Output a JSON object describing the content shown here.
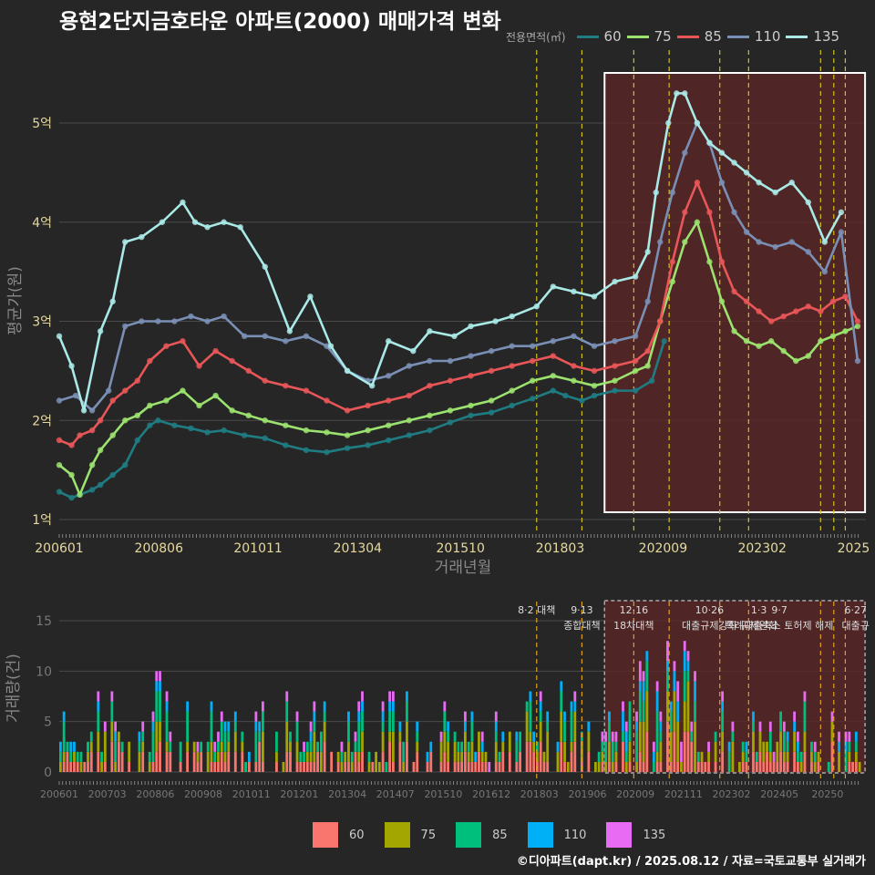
{
  "title": "용현2단지금호타운 아파트(2000) 매매가격 변화",
  "credit": "©디아파트(dapt.kr) / 2025.08.12 / 자료=국토교통부 실거래가",
  "legend_title": "전용면적(㎡)",
  "colors": {
    "price": {
      "60": "#1f7c82",
      "75": "#9be26f",
      "85": "#e95658",
      "110": "#7a8fb5",
      "135": "#a9e9e6"
    },
    "volume": {
      "60": "#f8766d",
      "75": "#a3a500",
      "85": "#00bf7d",
      "110": "#00b0f6",
      "135": "#e76bf3"
    },
    "policy_line": "#d4c020",
    "highlight": "#5a2525"
  },
  "chart_data": [
    {
      "type": "line",
      "title": "용현2단지금호타운 아파트(2000) 매매가격 변화",
      "xlabel": "거래년월",
      "ylabel": "평균가(원)",
      "x_ticks": [
        "200601",
        "200806",
        "201011",
        "201304",
        "201510",
        "201803",
        "202009",
        "202302",
        "2025"
      ],
      "y_ticks": [
        "1억",
        "2억",
        "3억",
        "4억",
        "5억"
      ],
      "ylim": [
        1,
        5.6
      ],
      "xlim": [
        2006.0,
        2025.6
      ],
      "highlight_range": [
        2019.25,
        2025.58
      ],
      "policy_lines": [
        2017.6,
        2018.7,
        2019.96,
        2020.82,
        2022.05,
        2022.75,
        2024.5,
        2024.82,
        2025.1
      ],
      "series": [
        {
          "name": "60",
          "x": [
            2006.0,
            2006.3,
            2006.5,
            2006.8,
            2007.0,
            2007.3,
            2007.6,
            2007.9,
            2008.2,
            2008.4,
            2008.8,
            2009.2,
            2009.6,
            2010.0,
            2010.5,
            2011.0,
            2011.5,
            2012.0,
            2012.5,
            2013.0,
            2013.5,
            2014.0,
            2014.5,
            2015.0,
            2015.5,
            2016.0,
            2016.5,
            2017.0,
            2017.5,
            2018.0,
            2018.3,
            2018.7,
            2019.0,
            2019.5,
            2020.0,
            2020.4,
            2020.7
          ],
          "values": [
            1.28,
            1.22,
            1.25,
            1.3,
            1.35,
            1.45,
            1.55,
            1.8,
            1.95,
            2.0,
            1.95,
            1.92,
            1.88,
            1.9,
            1.85,
            1.82,
            1.75,
            1.7,
            1.68,
            1.72,
            1.75,
            1.8,
            1.85,
            1.9,
            1.98,
            2.05,
            2.08,
            2.15,
            2.22,
            2.3,
            2.25,
            2.2,
            2.25,
            2.3,
            2.3,
            2.4,
            2.8
          ]
        },
        {
          "name": "75",
          "x": [
            2006.0,
            2006.3,
            2006.5,
            2006.8,
            2007.0,
            2007.3,
            2007.6,
            2007.9,
            2008.2,
            2008.6,
            2009.0,
            2009.4,
            2009.8,
            2010.2,
            2010.6,
            2011.0,
            2011.5,
            2012.0,
            2012.5,
            2013.0,
            2013.5,
            2014.0,
            2014.5,
            2015.0,
            2015.5,
            2016.0,
            2016.5,
            2017.0,
            2017.5,
            2018.0,
            2018.5,
            2019.0,
            2019.5,
            2020.0,
            2020.3,
            2020.6,
            2020.9,
            2021.2,
            2021.5,
            2021.8,
            2022.1,
            2022.4,
            2022.7,
            2023.0,
            2023.3,
            2023.6,
            2023.9,
            2024.2,
            2024.5,
            2024.8,
            2025.1,
            2025.4
          ],
          "values": [
            1.55,
            1.45,
            1.25,
            1.55,
            1.7,
            1.85,
            2.0,
            2.05,
            2.15,
            2.2,
            2.3,
            2.15,
            2.25,
            2.1,
            2.05,
            2.0,
            1.95,
            1.9,
            1.88,
            1.85,
            1.9,
            1.95,
            2.0,
            2.05,
            2.1,
            2.15,
            2.2,
            2.3,
            2.4,
            2.45,
            2.4,
            2.35,
            2.4,
            2.5,
            2.55,
            3.0,
            3.4,
            3.8,
            4.0,
            3.6,
            3.2,
            2.9,
            2.8,
            2.75,
            2.8,
            2.7,
            2.6,
            2.65,
            2.8,
            2.85,
            2.9,
            2.95
          ]
        },
        {
          "name": "85",
          "x": [
            2006.0,
            2006.3,
            2006.5,
            2006.8,
            2007.0,
            2007.3,
            2007.6,
            2007.9,
            2008.2,
            2008.6,
            2009.0,
            2009.4,
            2009.8,
            2010.2,
            2010.6,
            2011.0,
            2011.5,
            2012.0,
            2012.5,
            2013.0,
            2013.5,
            2014.0,
            2014.5,
            2015.0,
            2015.5,
            2016.0,
            2016.5,
            2017.0,
            2017.5,
            2018.0,
            2018.5,
            2019.0,
            2019.5,
            2020.0,
            2020.3,
            2020.6,
            2020.9,
            2021.2,
            2021.5,
            2021.8,
            2022.1,
            2022.4,
            2022.7,
            2023.0,
            2023.3,
            2023.6,
            2023.9,
            2024.2,
            2024.5,
            2024.8,
            2025.1,
            2025.4
          ],
          "values": [
            1.8,
            1.75,
            1.85,
            1.9,
            2.0,
            2.2,
            2.3,
            2.4,
            2.6,
            2.75,
            2.8,
            2.55,
            2.7,
            2.6,
            2.5,
            2.4,
            2.35,
            2.3,
            2.2,
            2.1,
            2.15,
            2.2,
            2.25,
            2.35,
            2.4,
            2.45,
            2.5,
            2.55,
            2.6,
            2.65,
            2.55,
            2.5,
            2.55,
            2.6,
            2.7,
            3.0,
            3.6,
            4.1,
            4.4,
            4.1,
            3.6,
            3.3,
            3.2,
            3.1,
            3.0,
            3.05,
            3.1,
            3.15,
            3.1,
            3.2,
            3.25,
            3.0
          ]
        },
        {
          "name": "110",
          "x": [
            2006.0,
            2006.4,
            2006.8,
            2007.2,
            2007.6,
            2008.0,
            2008.4,
            2008.8,
            2009.2,
            2009.6,
            2010.0,
            2010.5,
            2011.0,
            2011.5,
            2012.0,
            2012.5,
            2013.0,
            2013.5,
            2014.0,
            2014.5,
            2015.0,
            2015.5,
            2016.0,
            2016.5,
            2017.0,
            2017.5,
            2018.0,
            2018.5,
            2019.0,
            2019.5,
            2020.0,
            2020.3,
            2020.6,
            2020.9,
            2021.2,
            2021.5,
            2021.8,
            2022.1,
            2022.4,
            2022.7,
            2023.0,
            2023.4,
            2023.8,
            2024.2,
            2024.6,
            2025.0,
            2025.4
          ],
          "values": [
            2.2,
            2.25,
            2.1,
            2.3,
            2.95,
            3.0,
            3.0,
            3.0,
            3.05,
            3.0,
            3.05,
            2.85,
            2.85,
            2.8,
            2.85,
            2.75,
            2.5,
            2.4,
            2.45,
            2.55,
            2.6,
            2.6,
            2.65,
            2.7,
            2.75,
            2.75,
            2.8,
            2.85,
            2.75,
            2.8,
            2.85,
            3.2,
            3.8,
            4.3,
            4.7,
            5.0,
            4.8,
            4.4,
            4.1,
            3.9,
            3.8,
            3.75,
            3.8,
            3.7,
            3.5,
            3.9,
            2.6
          ]
        },
        {
          "name": "135",
          "x": [
            2006.0,
            2006.3,
            2006.6,
            2007.0,
            2007.3,
            2007.6,
            2008.0,
            2008.5,
            2009.0,
            2009.3,
            2009.6,
            2010.0,
            2010.4,
            2011.0,
            2011.6,
            2012.1,
            2012.6,
            2013.0,
            2013.6,
            2014.0,
            2014.6,
            2015.0,
            2015.6,
            2016.0,
            2016.6,
            2017.0,
            2017.6,
            2018.0,
            2018.5,
            2019.0,
            2019.5,
            2020.0,
            2020.3,
            2020.5,
            2020.8,
            2021.0,
            2021.2,
            2021.5,
            2021.8,
            2022.1,
            2022.4,
            2022.7,
            2023.0,
            2023.4,
            2023.8,
            2024.2,
            2024.6,
            2025.0
          ],
          "values": [
            2.85,
            2.55,
            2.1,
            2.9,
            3.2,
            3.8,
            3.85,
            4.0,
            4.2,
            4.0,
            3.95,
            4.0,
            3.95,
            3.55,
            2.9,
            3.25,
            2.75,
            2.5,
            2.35,
            2.8,
            2.7,
            2.9,
            2.85,
            2.95,
            3.0,
            3.05,
            3.15,
            3.35,
            3.3,
            3.25,
            3.4,
            3.45,
            3.7,
            4.3,
            5.0,
            5.3,
            5.3,
            5.0,
            4.8,
            4.7,
            4.6,
            4.5,
            4.4,
            4.3,
            4.4,
            4.2,
            3.8,
            4.1
          ]
        }
      ]
    },
    {
      "type": "bar",
      "xlabel": "",
      "ylabel": "거래량(건)",
      "x_ticks": [
        "200601",
        "200703",
        "200806",
        "200908",
        "201011",
        "201201",
        "201304",
        "201407",
        "201510",
        "201612",
        "201803",
        "201906",
        "202009",
        "202111",
        "202302",
        "202405",
        "20250"
      ],
      "y_ticks": [
        "0",
        "5",
        "10",
        "15"
      ],
      "ylim": [
        0,
        17
      ],
      "stacked_series": [
        "60",
        "75",
        "85",
        "110",
        "135"
      ],
      "annotations": [
        {
          "x": 2017.6,
          "text": "8·2 대책"
        },
        {
          "x": 2018.7,
          "text": "9·13\n종합대책"
        },
        {
          "x": 2019.96,
          "text": "12·16\n18차대책"
        },
        {
          "x": 2021.8,
          "text": "10·26\n대출규제강화"
        },
        {
          "x": 2023.0,
          "text": "1·3\n규제완화"
        },
        {
          "x": 2023.5,
          "text": "9·7\n특례대출축소 토허제 해제"
        },
        {
          "x": 2025.35,
          "text": "6·27\n대출규"
        }
      ]
    }
  ]
}
